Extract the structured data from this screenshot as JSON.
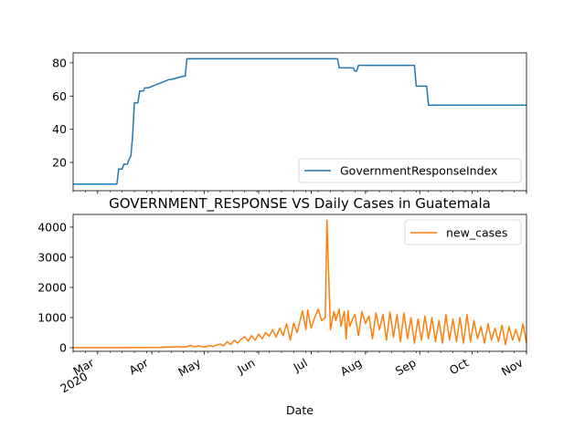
{
  "chart_data": [
    {
      "type": "line",
      "title": "",
      "xlabel": "",
      "ylabel": "",
      "legend_position": "lower right",
      "grid": false,
      "ylim": [
        3,
        86
      ],
      "yticks": [
        "20",
        "40",
        "60",
        "80"
      ],
      "series": [
        {
          "name": "GovernmentResponseIndex",
          "color": "#1f77b4",
          "x": [
            "2020-02-16",
            "2020-03-12",
            "2020-03-13",
            "2020-03-15",
            "2020-03-16",
            "2020-03-18",
            "2020-03-19",
            "2020-03-20",
            "2020-03-21",
            "2020-03-22",
            "2020-03-24",
            "2020-03-25",
            "2020-03-27",
            "2020-03-28",
            "2020-03-30",
            "2020-04-11",
            "2020-04-12",
            "2020-04-19",
            "2020-04-20",
            "2020-04-21",
            "2020-04-22",
            "2020-07-16",
            "2020-07-17",
            "2020-07-25",
            "2020-07-26",
            "2020-07-27",
            "2020-07-28",
            "2020-08-29",
            "2020-08-30",
            "2020-09-05",
            "2020-09-06",
            "2020-11-01"
          ],
          "values": [
            7,
            7,
            16,
            16,
            19,
            19,
            22,
            24,
            36,
            56,
            56,
            63,
            63,
            65,
            65,
            70,
            70,
            72,
            72,
            82.5,
            82.5,
            82.5,
            77,
            77,
            75,
            75,
            78.5,
            78.5,
            66,
            66,
            54.5,
            54.5
          ]
        }
      ]
    },
    {
      "type": "line",
      "title": "GOVERNMENT_RESPONSE VS Daily Cases in Guatemala",
      "xlabel": "Date",
      "ylabel": "",
      "legend_position": "upper right",
      "grid": false,
      "ylim": [
        -120,
        4420
      ],
      "yticks": [
        "0",
        "1000",
        "2000",
        "3000",
        "4000"
      ],
      "xticks": [
        {
          "label": "Mar",
          "sub": "2020",
          "date": "2020-03-01"
        },
        {
          "label": "Apr",
          "sub": "",
          "date": "2020-04-01"
        },
        {
          "label": "May",
          "sub": "",
          "date": "2020-05-01"
        },
        {
          "label": "Jun",
          "sub": "",
          "date": "2020-06-01"
        },
        {
          "label": "Jul",
          "sub": "",
          "date": "2020-07-01"
        },
        {
          "label": "Aug",
          "sub": "",
          "date": "2020-08-01"
        },
        {
          "label": "Sep",
          "sub": "",
          "date": "2020-09-01"
        },
        {
          "label": "Oct",
          "sub": "",
          "date": "2020-10-01"
        },
        {
          "label": "Nov",
          "sub": "",
          "date": "2020-11-01"
        }
      ],
      "xlim": [
        "2020-02-16",
        "2020-11-01"
      ],
      "series": [
        {
          "name": "new_cases",
          "color": "#ff7f0e",
          "x": [
            "2020-02-16",
            "2020-03-13",
            "2020-04-05",
            "2020-04-15",
            "2020-04-20",
            "2020-04-23",
            "2020-04-25",
            "2020-04-28",
            "2020-05-01",
            "2020-05-04",
            "2020-05-06",
            "2020-05-08",
            "2020-05-10",
            "2020-05-12",
            "2020-05-14",
            "2020-05-16",
            "2020-05-18",
            "2020-05-20",
            "2020-05-22",
            "2020-05-24",
            "2020-05-26",
            "2020-05-28",
            "2020-05-30",
            "2020-06-01",
            "2020-06-03",
            "2020-06-05",
            "2020-06-07",
            "2020-06-09",
            "2020-06-11",
            "2020-06-13",
            "2020-06-15",
            "2020-06-17",
            "2020-06-19",
            "2020-06-21",
            "2020-06-23",
            "2020-06-24",
            "2020-06-26",
            "2020-06-28",
            "2020-06-29",
            "2020-07-01",
            "2020-07-03",
            "2020-07-05",
            "2020-07-07",
            "2020-07-09",
            "2020-07-10",
            "2020-07-12",
            "2020-07-14",
            "2020-07-15",
            "2020-07-17",
            "2020-07-18",
            "2020-07-19",
            "2020-07-20",
            "2020-07-21",
            "2020-07-22",
            "2020-07-23",
            "2020-07-25",
            "2020-07-26",
            "2020-07-28",
            "2020-07-30",
            "2020-08-01",
            "2020-08-03",
            "2020-08-05",
            "2020-08-07",
            "2020-08-09",
            "2020-08-11",
            "2020-08-13",
            "2020-08-15",
            "2020-08-17",
            "2020-08-19",
            "2020-08-21",
            "2020-08-23",
            "2020-08-25",
            "2020-08-27",
            "2020-08-29",
            "2020-08-31",
            "2020-09-02",
            "2020-09-04",
            "2020-09-06",
            "2020-09-08",
            "2020-09-10",
            "2020-09-12",
            "2020-09-14",
            "2020-09-16",
            "2020-09-18",
            "2020-09-20",
            "2020-09-22",
            "2020-09-24",
            "2020-09-26",
            "2020-09-28",
            "2020-09-30",
            "2020-10-02",
            "2020-10-04",
            "2020-10-06",
            "2020-10-08",
            "2020-10-10",
            "2020-10-12",
            "2020-10-14",
            "2020-10-16",
            "2020-10-18",
            "2020-10-20",
            "2020-10-22",
            "2020-10-24",
            "2020-10-26",
            "2020-10-28",
            "2020-10-30",
            "2020-11-01"
          ],
          "values": [
            0,
            0,
            10,
            30,
            20,
            80,
            30,
            60,
            20,
            70,
            40,
            90,
            120,
            60,
            200,
            100,
            250,
            150,
            280,
            360,
            220,
            400,
            250,
            450,
            300,
            500,
            380,
            600,
            350,
            650,
            400,
            800,
            250,
            820,
            500,
            750,
            1220,
            600,
            1250,
            650,
            1000,
            1280,
            900,
            1000,
            4230,
            600,
            1200,
            900,
            1280,
            700,
            1000,
            1200,
            300,
            1230,
            700,
            1000,
            1100,
            400,
            1200,
            800,
            1050,
            300,
            1150,
            600,
            1100,
            250,
            1180,
            350,
            1100,
            200,
            1150,
            300,
            1000,
            150,
            950,
            250,
            1050,
            300,
            1000,
            200,
            900,
            150,
            1100,
            250,
            950,
            200,
            1000,
            150,
            1100,
            200,
            900,
            300,
            700,
            150,
            800,
            250,
            650,
            200,
            750,
            100,
            700,
            250,
            600,
            200,
            800,
            150
          ]
        }
      ]
    }
  ]
}
